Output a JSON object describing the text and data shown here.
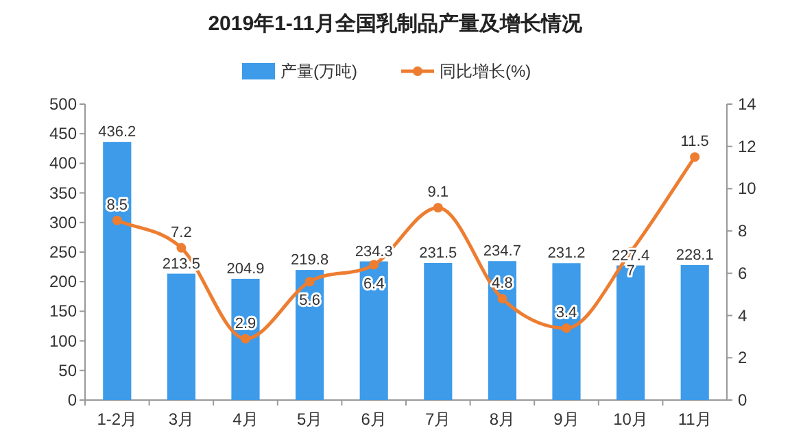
{
  "chart_data": {
    "type": "bar",
    "title": "2019年1-11月全国乳制品产量及增长情况",
    "categories": [
      "1-2月",
      "3月",
      "4月",
      "5月",
      "6月",
      "7月",
      "8月",
      "9月",
      "10月",
      "11月"
    ],
    "series": [
      {
        "name": "产量(万吨)",
        "color": "#3d9be9",
        "values": [
          436.2,
          213.5,
          204.9,
          219.8,
          234.3,
          231.5,
          234.7,
          231.2,
          227.4,
          228.1
        ]
      },
      {
        "name": "同比增长(%)",
        "type": "line",
        "axis": "y2",
        "color": "#ed7d31",
        "values": [
          8.5,
          7.2,
          2.9,
          5.6,
          6.4,
          9.1,
          4.8,
          3.4,
          7,
          11.5
        ]
      }
    ],
    "ylim": [
      0,
      500
    ],
    "yticks": [
      0,
      50,
      100,
      150,
      200,
      250,
      300,
      350,
      400,
      450,
      500
    ],
    "y2lim": [
      0,
      14
    ],
    "y2ticks": [
      0,
      2,
      4,
      6,
      8,
      10,
      12,
      14
    ],
    "legend": "top",
    "marker": "circle",
    "data_labels": true
  }
}
